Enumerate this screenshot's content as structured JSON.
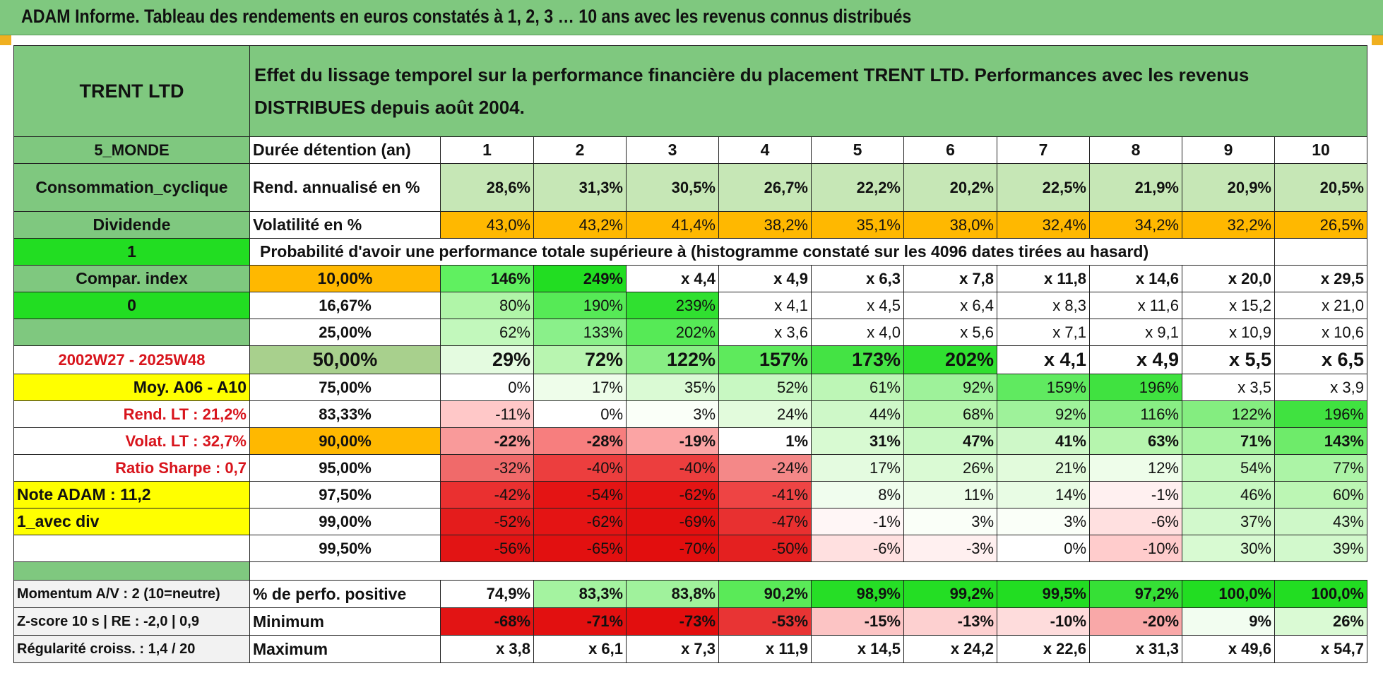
{
  "title": "ADAM Informe. Tableau des rendements en euros constatés à 1, 2, 3 … 10 ans avec les revenus connus distribués",
  "left": {
    "name": "TRENT LTD",
    "region": "5_MONDE",
    "sector": "Consommation_cyclique",
    "type": "Dividende",
    "flag1": "1",
    "compar_label": "Compar. index",
    "flag2": "0",
    "period": "2002W27 - 2025W48",
    "moy": "Moy. A06 - A10",
    "rend_lt": "Rend. LT :   21,2%",
    "volat_lt": "Volat. LT :   32,7%",
    "sharpe": "Ratio Sharpe :    0,7",
    "note": "Note ADAM : 11,2",
    "avec_div": "1_avec div",
    "momentum": "Momentum A/V : 2 (10=neutre)",
    "zscore": "Z-score 10 s | RE : -2,0 | 0,9",
    "regularite": "Régularité croiss. : 1,4 / 20"
  },
  "description": "Effet du lissage temporel sur la performance financière du placement TRENT LTD. Performances avec les revenus DISTRIBUES depuis août 2004.",
  "header": {
    "label": "Durée détention (an)",
    "years": [
      "1",
      "2",
      "3",
      "4",
      "5",
      "6",
      "7",
      "8",
      "9",
      "10"
    ]
  },
  "rend": {
    "label": "Rend. annualisé en %",
    "values": [
      "28,6%",
      "31,3%",
      "30,5%",
      "26,7%",
      "22,2%",
      "20,2%",
      "22,5%",
      "21,9%",
      "20,9%",
      "20,5%"
    ]
  },
  "vol": {
    "label": "Volatilité en %",
    "values": [
      "43,0%",
      "43,2%",
      "41,4%",
      "38,2%",
      "35,1%",
      "38,0%",
      "32,4%",
      "34,2%",
      "32,2%",
      "26,5%"
    ]
  },
  "prob_title": "Probabilité d'avoir une performance totale supérieure à (histogramme constaté sur les 4096 dates tirées au hasard)",
  "rows": [
    {
      "pct": "10,00%",
      "values": [
        "146%",
        "249%",
        "x 4,4",
        "x 4,9",
        "x 6,3",
        "x 7,8",
        "x 11,8",
        "x 14,6",
        "x 20,0",
        "x 29,5"
      ]
    },
    {
      "pct": "16,67%",
      "values": [
        "80%",
        "190%",
        "239%",
        "x 4,1",
        "x 4,5",
        "x 6,4",
        "x 8,3",
        "x 11,6",
        "x 15,2",
        "x 21,0"
      ]
    },
    {
      "pct": "25,00%",
      "values": [
        "62%",
        "133%",
        "202%",
        "x 3,6",
        "x 4,0",
        "x 5,6",
        "x 7,1",
        "x 9,1",
        "x 10,9",
        "x 10,6"
      ]
    },
    {
      "pct": "50,00%",
      "values": [
        "29%",
        "72%",
        "122%",
        "157%",
        "173%",
        "202%",
        "x 4,1",
        "x 4,9",
        "x 5,5",
        "x 6,5"
      ]
    },
    {
      "pct": "75,00%",
      "values": [
        "0%",
        "17%",
        "35%",
        "52%",
        "61%",
        "92%",
        "159%",
        "196%",
        "x 3,5",
        "x 3,9"
      ]
    },
    {
      "pct": "83,33%",
      "values": [
        "-11%",
        "0%",
        "3%",
        "24%",
        "44%",
        "68%",
        "92%",
        "116%",
        "122%",
        "196%"
      ]
    },
    {
      "pct": "90,00%",
      "values": [
        "-22%",
        "-28%",
        "-19%",
        "1%",
        "31%",
        "47%",
        "41%",
        "63%",
        "71%",
        "143%"
      ]
    },
    {
      "pct": "95,00%",
      "values": [
        "-32%",
        "-40%",
        "-40%",
        "-24%",
        "17%",
        "26%",
        "21%",
        "12%",
        "54%",
        "77%"
      ]
    },
    {
      "pct": "97,50%",
      "values": [
        "-42%",
        "-54%",
        "-62%",
        "-41%",
        "8%",
        "11%",
        "14%",
        "-1%",
        "46%",
        "60%"
      ]
    },
    {
      "pct": "99,00%",
      "values": [
        "-52%",
        "-62%",
        "-69%",
        "-47%",
        "-1%",
        "3%",
        "3%",
        "-6%",
        "37%",
        "43%"
      ]
    },
    {
      "pct": "99,50%",
      "values": [
        "-56%",
        "-65%",
        "-70%",
        "-50%",
        "-6%",
        "-3%",
        "0%",
        "-10%",
        "30%",
        "39%"
      ]
    }
  ],
  "positive": {
    "label": "% de perfo. positive",
    "values": [
      "74,9%",
      "83,3%",
      "83,8%",
      "90,2%",
      "98,9%",
      "99,2%",
      "99,5%",
      "97,2%",
      "100,0%",
      "100,0%"
    ]
  },
  "minimum": {
    "label": "Minimum",
    "values": [
      "-68%",
      "-71%",
      "-73%",
      "-53%",
      "-15%",
      "-13%",
      "-10%",
      "-20%",
      "9%",
      "26%"
    ]
  },
  "maximum": {
    "label": "Maximum",
    "values": [
      "x 3,8",
      "x 6,1",
      "x 7,3",
      "x 11,9",
      "x 14,5",
      "x 24,2",
      "x 22,6",
      "x 31,3",
      "x 49,6",
      "x 54,7"
    ]
  },
  "colors": {
    "header_green": "#7fc87f",
    "bright_green": "#22dd22",
    "orange": "#ffb800",
    "yellow": "#ffff00",
    "red_text": "#d8141c"
  }
}
